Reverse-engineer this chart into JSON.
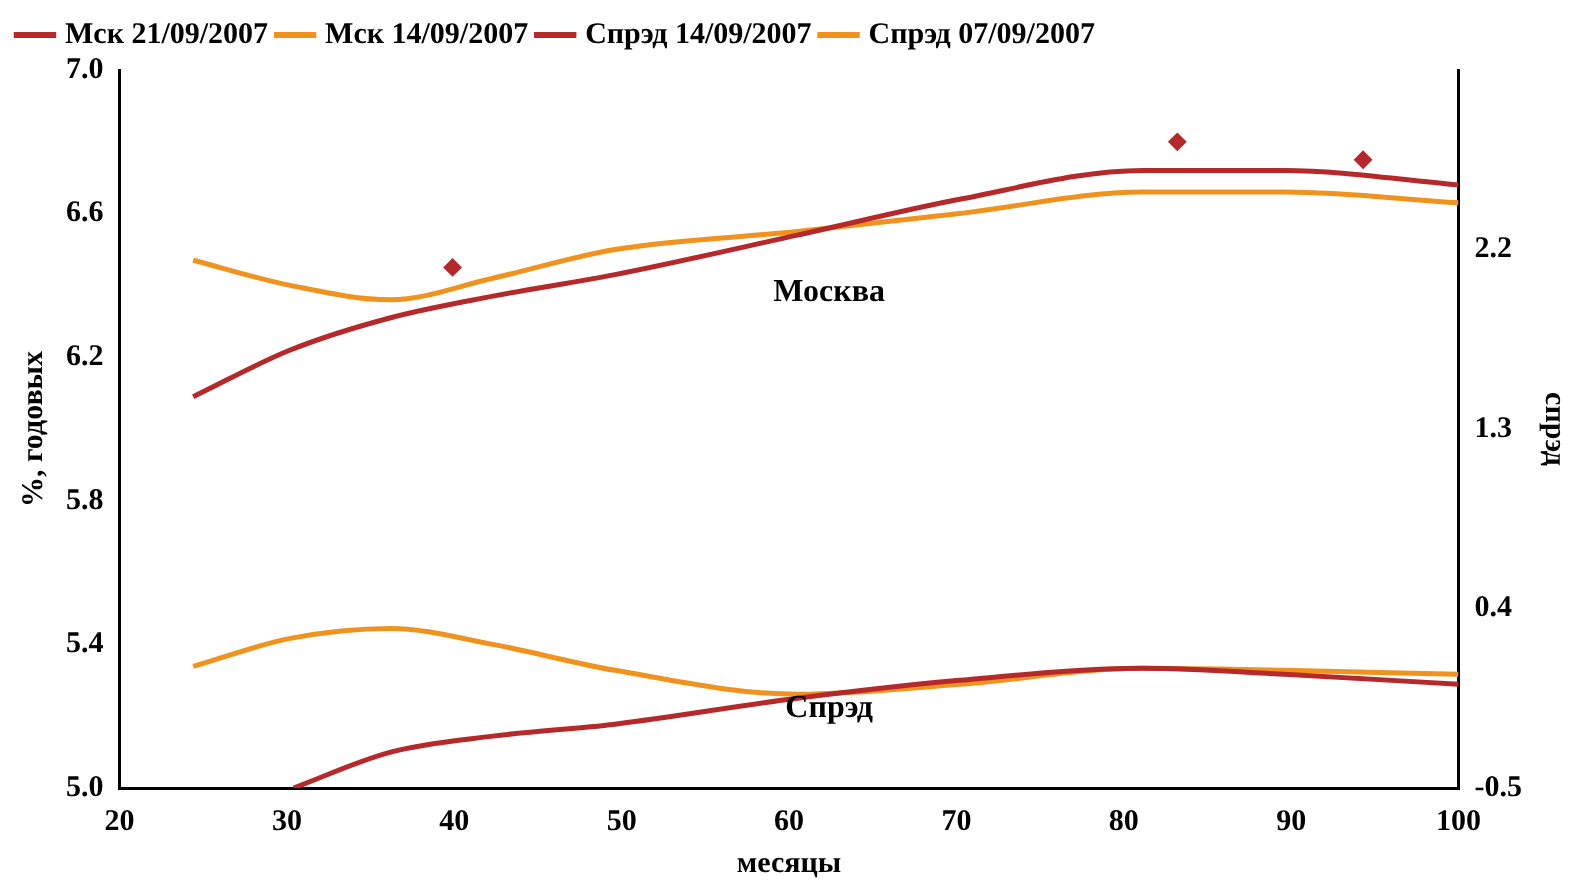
{
  "chart_data": {
    "type": "line",
    "xlabel": "месяцы",
    "ylabel": "%, годовых",
    "y2label": "спрэд",
    "xlim": [
      20,
      100
    ],
    "xticks": [
      20,
      30,
      40,
      50,
      60,
      70,
      80,
      90,
      100
    ],
    "ylim": [
      5.0,
      7.0
    ],
    "yticks": [
      {
        "value": 5.0,
        "label": "5.0"
      },
      5.4,
      5.8,
      6.2,
      6.6,
      {
        "value": 7.0,
        "label": "7.0"
      }
    ],
    "y2lim": [
      -0.5,
      3.1
    ],
    "y2ticks": [
      -0.5,
      0.4,
      1.3,
      2.2
    ],
    "grid": false,
    "legend": "top left",
    "line_style": "solid",
    "marker": "none",
    "series": [
      {
        "name": "Мск 21/09/2007",
        "color": "#b5292a",
        "x": [
          24.4,
          30.2,
          36.2,
          42.3,
          49.6,
          60.5,
          70.2,
          81.1,
          89.6,
          100
        ],
        "values": [
          6.09,
          6.22,
          6.31,
          6.37,
          6.43,
          6.54,
          6.64,
          6.72,
          6.72,
          6.68
        ]
      },
      {
        "name": "Мск 14/09/2007",
        "color": "#f0921e",
        "x": [
          24.4,
          30.2,
          36.2,
          42.3,
          49.6,
          60.5,
          70.2,
          81.1,
          89.6,
          100
        ],
        "values": [
          6.47,
          6.4,
          6.36,
          6.42,
          6.5,
          6.55,
          6.6,
          6.66,
          6.66,
          6.63
        ]
      },
      {
        "name": "Спрэд 14/09/2007",
        "color": "#b5292a",
        "axis": "y2",
        "x": [
          30.4,
          36.2,
          42.3,
          49.6,
          60.5,
          70.2,
          81.1,
          89.6,
          100
        ],
        "values": [
          -0.5,
          -0.32,
          -0.24,
          -0.18,
          -0.05,
          0.04,
          0.1,
          0.07,
          0.02
        ]
      },
      {
        "name": "Спрэд 07/09/2007",
        "color": "#f0921e",
        "axis": "y2",
        "x": [
          24.4,
          30.2,
          36.2,
          42.3,
          49.6,
          60.5,
          70.2,
          81.1,
          89.6,
          100
        ],
        "values": [
          0.11,
          0.25,
          0.3,
          0.22,
          0.09,
          -0.03,
          0.02,
          0.1,
          0.09,
          0.07
        ]
      },
      {
        "type": "scatter",
        "marker": "diamond",
        "color": "#b5292a",
        "x": [
          39.9,
          83.2,
          94.3
        ],
        "values": [
          6.45,
          6.8,
          6.75
        ]
      }
    ],
    "annotations": [
      "Москва",
      "Спрэд"
    ]
  }
}
